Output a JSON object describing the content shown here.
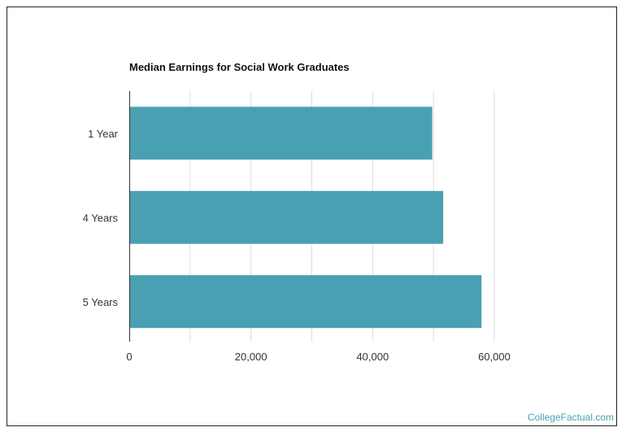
{
  "chart_data": {
    "type": "bar",
    "orientation": "horizontal",
    "title": "Median Earnings for Social Work Graduates",
    "categories": [
      "1 Year",
      "4 Years",
      "5 Years"
    ],
    "values": [
      49800,
      51600,
      57900
    ],
    "xlim": [
      0,
      60000
    ],
    "xticks": [
      0,
      20000,
      40000,
      60000
    ],
    "xtick_labels": [
      "0",
      "20,000",
      "40,000",
      "60,000"
    ],
    "minor_gridline_step": 10000,
    "grid": true,
    "legend": "none",
    "bar_color": "#4aa0b3",
    "grid_color": "#dddddd",
    "axis_color": "#333333"
  },
  "watermark": {
    "text": "CollegeFactual.com",
    "color": "#4aa0b3"
  }
}
